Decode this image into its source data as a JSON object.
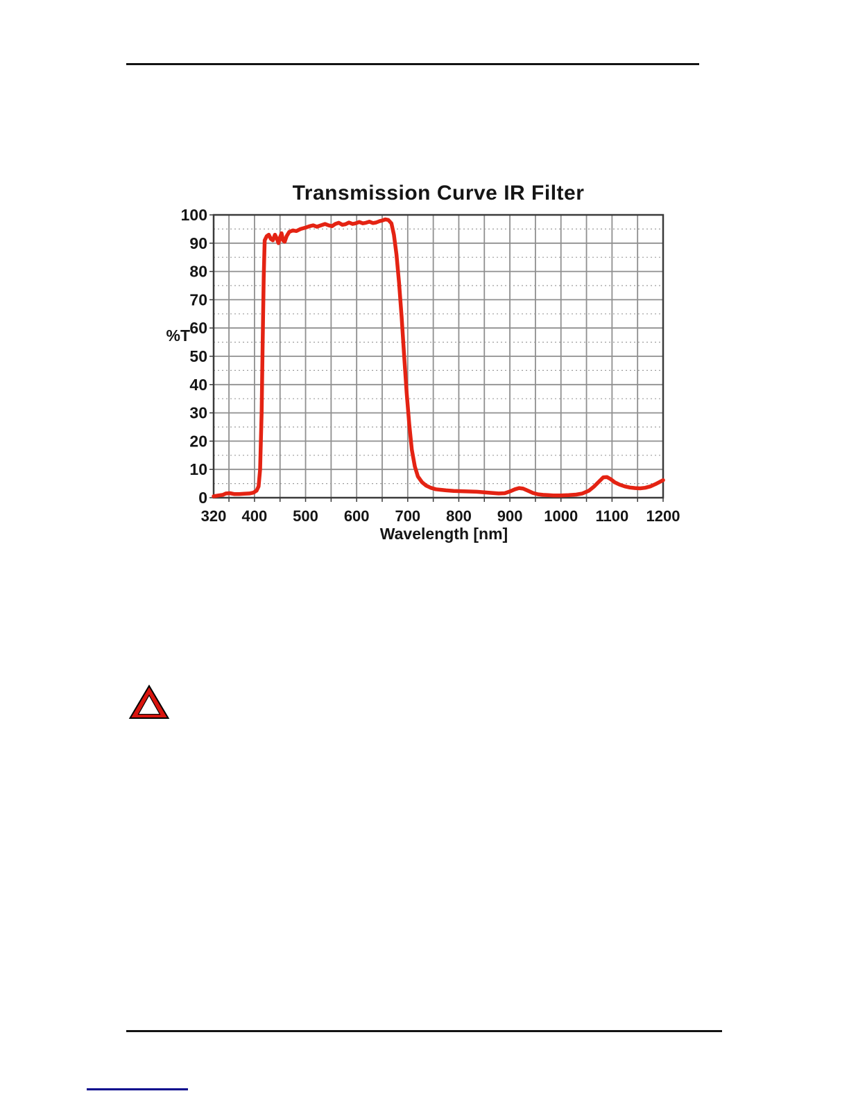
{
  "chart_data": {
    "type": "line",
    "title": "Transmission Curve IR Filter",
    "xlabel": "Wavelength [nm]",
    "ylabel": "%T",
    "xlim": [
      320,
      1200
    ],
    "ylim": [
      0,
      100
    ],
    "x_tick_labels": [
      320,
      400,
      500,
      600,
      700,
      800,
      900,
      1000,
      1100,
      1200
    ],
    "y_tick_labels": [
      0,
      10,
      20,
      30,
      40,
      50,
      60,
      70,
      80,
      90,
      100
    ],
    "grid": {
      "on": true,
      "x_major_step_nm": 50,
      "x_major_start_nm": 350,
      "y_major_step": 10,
      "y_minor_step": 5
    },
    "legend": "none",
    "series": [
      {
        "name": "IR filter transmission",
        "color": "#e42313",
        "points": [
          [
            320,
            0.5
          ],
          [
            330,
            0.8
          ],
          [
            338,
            1.0
          ],
          [
            344,
            1.5
          ],
          [
            352,
            1.6
          ],
          [
            360,
            1.3
          ],
          [
            370,
            1.3
          ],
          [
            380,
            1.4
          ],
          [
            390,
            1.5
          ],
          [
            398,
            1.8
          ],
          [
            404,
            2.5
          ],
          [
            408,
            4
          ],
          [
            411,
            10
          ],
          [
            414,
            30
          ],
          [
            416,
            55
          ],
          [
            418,
            78
          ],
          [
            420,
            91
          ],
          [
            424,
            92.5
          ],
          [
            428,
            93
          ],
          [
            432,
            91.5
          ],
          [
            436,
            91
          ],
          [
            440,
            93
          ],
          [
            444,
            91.5
          ],
          [
            447,
            90
          ],
          [
            450,
            92
          ],
          [
            453,
            93.5
          ],
          [
            456,
            91
          ],
          [
            459,
            90.5
          ],
          [
            463,
            92.5
          ],
          [
            468,
            94
          ],
          [
            475,
            94.5
          ],
          [
            482,
            94.3
          ],
          [
            490,
            95
          ],
          [
            500,
            95.5
          ],
          [
            508,
            96
          ],
          [
            515,
            96.3
          ],
          [
            522,
            95.8
          ],
          [
            530,
            96.3
          ],
          [
            538,
            96.8
          ],
          [
            545,
            96.3
          ],
          [
            552,
            96
          ],
          [
            558,
            96.8
          ],
          [
            565,
            97.2
          ],
          [
            572,
            96.5
          ],
          [
            578,
            96.7
          ],
          [
            585,
            97.3
          ],
          [
            592,
            96.8
          ],
          [
            598,
            97
          ],
          [
            605,
            97.5
          ],
          [
            612,
            97
          ],
          [
            618,
            97.2
          ],
          [
            625,
            97.6
          ],
          [
            632,
            97.1
          ],
          [
            638,
            97.3
          ],
          [
            645,
            97.8
          ],
          [
            650,
            98
          ],
          [
            656,
            98.4
          ],
          [
            662,
            98.2
          ],
          [
            668,
            97
          ],
          [
            673,
            93
          ],
          [
            678,
            86
          ],
          [
            683,
            76
          ],
          [
            688,
            64
          ],
          [
            693,
            50
          ],
          [
            698,
            37
          ],
          [
            703,
            26
          ],
          [
            708,
            17
          ],
          [
            714,
            11
          ],
          [
            720,
            7.5
          ],
          [
            728,
            5.5
          ],
          [
            736,
            4.3
          ],
          [
            745,
            3.5
          ],
          [
            755,
            3
          ],
          [
            765,
            2.8
          ],
          [
            775,
            2.6
          ],
          [
            790,
            2.4
          ],
          [
            805,
            2.3
          ],
          [
            820,
            2.2
          ],
          [
            835,
            2.1
          ],
          [
            850,
            1.9
          ],
          [
            865,
            1.7
          ],
          [
            878,
            1.5
          ],
          [
            890,
            1.6
          ],
          [
            900,
            2.2
          ],
          [
            910,
            3
          ],
          [
            918,
            3.4
          ],
          [
            926,
            3.2
          ],
          [
            935,
            2.5
          ],
          [
            945,
            1.7
          ],
          [
            955,
            1.2
          ],
          [
            965,
            1
          ],
          [
            975,
            0.9
          ],
          [
            985,
            0.8
          ],
          [
            1000,
            0.8
          ],
          [
            1015,
            0.9
          ],
          [
            1030,
            1.1
          ],
          [
            1042,
            1.5
          ],
          [
            1055,
            2.5
          ],
          [
            1065,
            4
          ],
          [
            1075,
            5.8
          ],
          [
            1083,
            7.2
          ],
          [
            1090,
            7.3
          ],
          [
            1097,
            6.6
          ],
          [
            1105,
            5.5
          ],
          [
            1115,
            4.6
          ],
          [
            1125,
            4
          ],
          [
            1135,
            3.6
          ],
          [
            1145,
            3.4
          ],
          [
            1155,
            3.3
          ],
          [
            1165,
            3.5
          ],
          [
            1175,
            4
          ],
          [
            1185,
            4.8
          ],
          [
            1200,
            6.2
          ]
        ]
      }
    ]
  },
  "warning_icon": {
    "semantic": "warning-triangle-icon",
    "band_color": "#d9150f",
    "border_color": "#000000",
    "inner_color": "#ffffff"
  },
  "footer_link": {
    "color": "#00008b"
  },
  "rules": {
    "color": "#131313"
  }
}
